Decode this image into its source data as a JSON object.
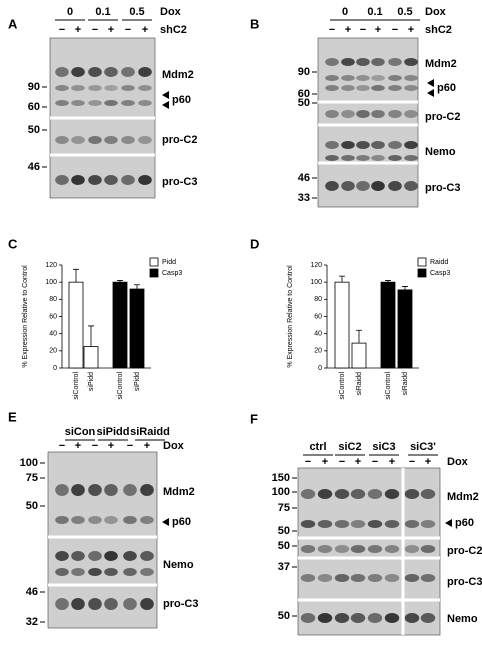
{
  "panels": [
    {
      "label": "A",
      "groups": [
        "0",
        "0.1",
        "0.5"
      ],
      "group_label": "Dox",
      "signs": [
        "−",
        "+",
        "−",
        "+",
        "−",
        "+"
      ],
      "sign_label": "shC2",
      "markers": [
        "90",
        "60",
        "50",
        "46"
      ],
      "bands": [
        "Mdm2",
        "p60",
        "pro-C2",
        "pro-C3"
      ]
    },
    {
      "label": "B",
      "groups": [
        "0",
        "0.1",
        "0.5"
      ],
      "group_label": "Dox",
      "signs": [
        "−",
        "+",
        "−",
        "+",
        "−",
        "+"
      ],
      "sign_label": "shC2",
      "markers": [
        "90",
        "60",
        "50",
        "46",
        "33"
      ],
      "bands": [
        "Mdm2",
        "p60",
        "pro-C2",
        "Nemo",
        "pro-C3"
      ]
    },
    {
      "label": "E",
      "groups": [
        "siCon",
        "siPidd",
        "siRaidd"
      ],
      "signs": [
        "−",
        "+",
        "−",
        "+",
        "−",
        "+"
      ],
      "sign_label": "Dox",
      "markers": [
        "100",
        "75",
        "50",
        "46",
        "32"
      ],
      "bands": [
        "Mdm2",
        "p60",
        "Nemo",
        "pro-C3"
      ]
    },
    {
      "label": "F",
      "groups": [
        "ctrl",
        "siC2",
        "siC3",
        "siC3'"
      ],
      "signs": [
        "−",
        "+",
        "−",
        "+",
        "−",
        "+",
        "−",
        "+"
      ],
      "sign_label": "Dox",
      "markers": [
        "150",
        "100",
        "75",
        "50",
        "50",
        "37",
        "50"
      ],
      "bands": [
        "Mdm2",
        "p60",
        "pro-C2",
        "pro-C3",
        "Nemo"
      ]
    }
  ],
  "chart_data": [
    {
      "type": "bar",
      "panel": "C",
      "ylabel": "% Expression Relative to Control",
      "categories": [
        "siControl",
        "siPidd",
        "siControl",
        "siPidd"
      ],
      "series": [
        {
          "name": "Pidd",
          "color": "#ffffff",
          "values": [
            100,
            25,
            null,
            null
          ],
          "errors": [
            15,
            24,
            null,
            null
          ]
        },
        {
          "name": "Casp3",
          "color": "#000000",
          "values": [
            null,
            null,
            100,
            92
          ],
          "errors": [
            null,
            null,
            2,
            5
          ]
        }
      ],
      "ylim": [
        0,
        120
      ],
      "yticks": [
        0,
        20,
        40,
        60,
        80,
        100,
        120
      ]
    },
    {
      "type": "bar",
      "panel": "D",
      "ylabel": "% Expression Relative to Control",
      "categories": [
        "siControl",
        "siRaidd",
        "siControl",
        "siRaidd"
      ],
      "series": [
        {
          "name": "Raidd",
          "color": "#ffffff",
          "values": [
            100,
            29,
            null,
            null
          ],
          "errors": [
            7,
            15,
            null,
            null
          ]
        },
        {
          "name": "Casp3",
          "color": "#000000",
          "values": [
            null,
            null,
            100,
            91
          ],
          "errors": [
            null,
            null,
            2,
            4
          ]
        }
      ],
      "ylim": [
        0,
        120
      ],
      "yticks": [
        0,
        20,
        40,
        60,
        80,
        100,
        120
      ]
    }
  ]
}
